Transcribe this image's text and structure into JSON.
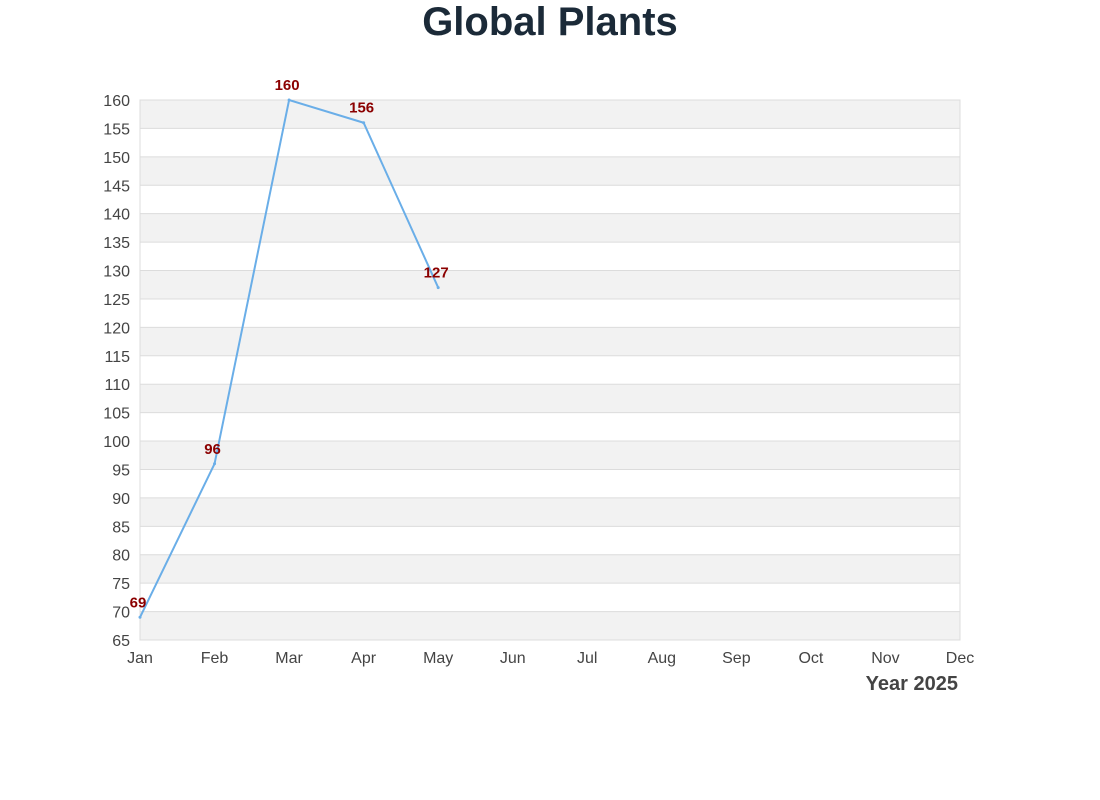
{
  "chart_data": {
    "type": "line",
    "title": "Global Plants",
    "xlabel": "Year 2025",
    "ylabel": "",
    "categories": [
      "Jan",
      "Feb",
      "Mar",
      "Apr",
      "May",
      "Jun",
      "Jul",
      "Aug",
      "Sep",
      "Oct",
      "Nov",
      "Dec"
    ],
    "series": [
      {
        "values": [
          69,
          96,
          160,
          156,
          127,
          null,
          null,
          null,
          null,
          null,
          null,
          null
        ]
      }
    ],
    "ylim": [
      65,
      160
    ],
    "ytick_step": 5,
    "data_labels": true,
    "grid": "alternating horizontal bands",
    "legend": "none",
    "colors": {
      "line": "#6aaee8",
      "data_label": "#8b0000",
      "title": "#1b2a38",
      "band": "#f2f2f2",
      "grid": "#dcdcdc",
      "tick_text": "#444444"
    }
  }
}
